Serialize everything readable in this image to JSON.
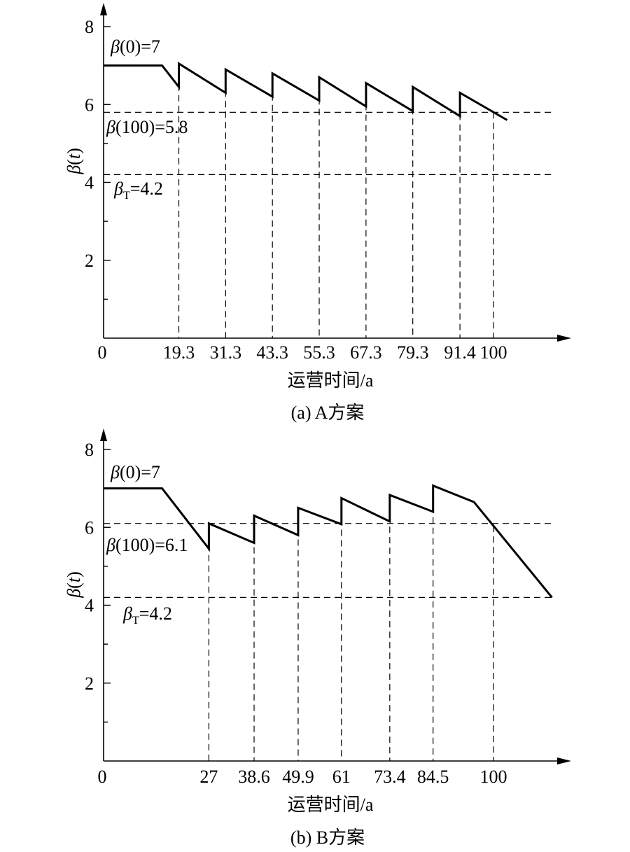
{
  "chart_data": [
    {
      "type": "line",
      "caption": "(a) A方案",
      "xlabel": "运营时间/a",
      "ylabel": "β(t)",
      "xlim": [
        0,
        117
      ],
      "ylim": [
        0,
        8
      ],
      "yticks": [
        2,
        4,
        6,
        8
      ],
      "xticks": [
        "0",
        "19.3",
        "31.3",
        "43.3",
        "55.3",
        "67.3",
        "79.3",
        "91.4",
        "100"
      ],
      "annotations": [
        "β(0)=7",
        "β(100)=5.8",
        "βT=4.2"
      ],
      "reference_lines": {
        "beta_100": 5.8,
        "beta_T": 4.2
      },
      "series": [
        {
          "x": [
            0,
            15,
            19.3,
            19.3,
            31.3,
            31.3,
            43.3,
            43.3,
            55.3,
            55.3,
            67.3,
            67.3,
            79.3,
            79.3,
            91.4,
            91.4,
            103.5
          ],
          "y": [
            7,
            7,
            6.45,
            7.05,
            6.3,
            6.9,
            6.2,
            6.8,
            6.1,
            6.7,
            5.95,
            6.55,
            5.83,
            6.45,
            5.7,
            6.3,
            5.6
          ]
        }
      ],
      "dashed_x": [
        19.3,
        31.3,
        43.3,
        55.3,
        67.3,
        79.3,
        91.4,
        100
      ]
    },
    {
      "type": "line",
      "caption": "(b) B方案",
      "xlabel": "运营时间/a",
      "ylabel": "β(t)",
      "xlim": [
        0,
        117
      ],
      "ylim": [
        0,
        8
      ],
      "yticks": [
        2,
        4,
        6,
        8
      ],
      "xticks": [
        "0",
        "27",
        "38.6",
        "49.9",
        "61",
        "73.4",
        "84.5",
        "100"
      ],
      "annotations": [
        "β(0)=7",
        "β(100)=6.1",
        "βT=4.2"
      ],
      "reference_lines": {
        "beta_100": 6.1,
        "beta_T": 4.2
      },
      "series": [
        {
          "x": [
            0,
            15,
            27,
            27,
            38.6,
            38.6,
            49.9,
            49.9,
            61,
            61,
            73.4,
            73.4,
            84.5,
            84.5,
            95,
            115
          ],
          "y": [
            7,
            7,
            5.45,
            6.1,
            5.6,
            6.3,
            5.8,
            6.5,
            6.08,
            6.75,
            6.15,
            6.83,
            6.4,
            7.07,
            6.65,
            4.2
          ]
        }
      ],
      "dashed_x": [
        27,
        38.6,
        49.9,
        61,
        73.4,
        84.5,
        100
      ]
    }
  ]
}
